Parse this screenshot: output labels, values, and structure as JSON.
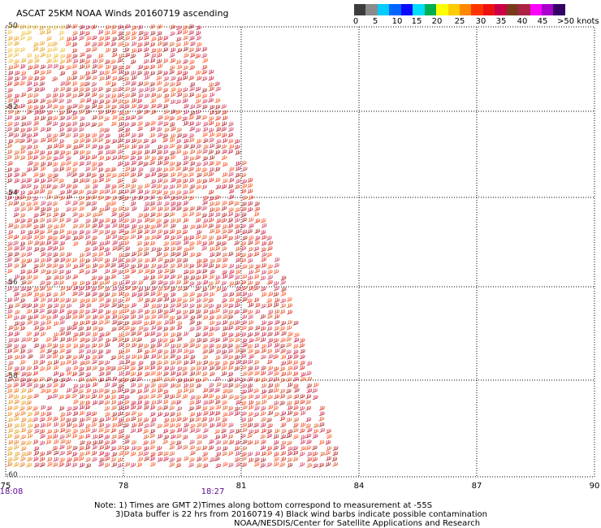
{
  "title": "ASCAT 25KM NOAA Winds 20160719 ascending",
  "colorbar": {
    "colors": [
      "#3c3c3c",
      "#8a8a8a",
      "#00ccff",
      "#0066ff",
      "#0a0aff",
      "#00ddff",
      "#00b050",
      "#ffff00",
      "#ffcc00",
      "#ff8800",
      "#ff3300",
      "#ee1111",
      "#cc0044",
      "#7a3a1a",
      "#aa2244",
      "#ff00ff",
      "#aa00cc",
      "#330066"
    ],
    "labels": [
      "0",
      "5",
      "10",
      "15",
      "20",
      "25",
      "30",
      "35",
      "40",
      "45"
    ],
    "units_label": ">50 knots"
  },
  "axes": {
    "x_ticks": [
      "75",
      "78",
      "81",
      "84",
      "87",
      "90"
    ],
    "y_ticks": [
      "-50",
      "-52",
      "-54",
      "-56",
      "-58",
      "-60"
    ]
  },
  "times": {
    "left": "18:08",
    "center": "18:27"
  },
  "notes": [
    "Note: 1) Times are GMT 2)Times along bottom correspond to measurement at -55S",
    "3)Data buffer is 22 hrs from 20160719 4) Black wind barbs indicate possible contamination",
    "NOAA/NESDIS/Center for Satellite Applications and Research"
  ],
  "map": {
    "lon_range": [
      75,
      90
    ],
    "lat_range": [
      -60,
      -50
    ],
    "swath_colors": [
      "#e8a020",
      "#f0c040",
      "#ee7722",
      "#dd3322",
      "#cc2244",
      "#e06030",
      "#d04060",
      "#b02a2a",
      "#ff5522"
    ]
  }
}
